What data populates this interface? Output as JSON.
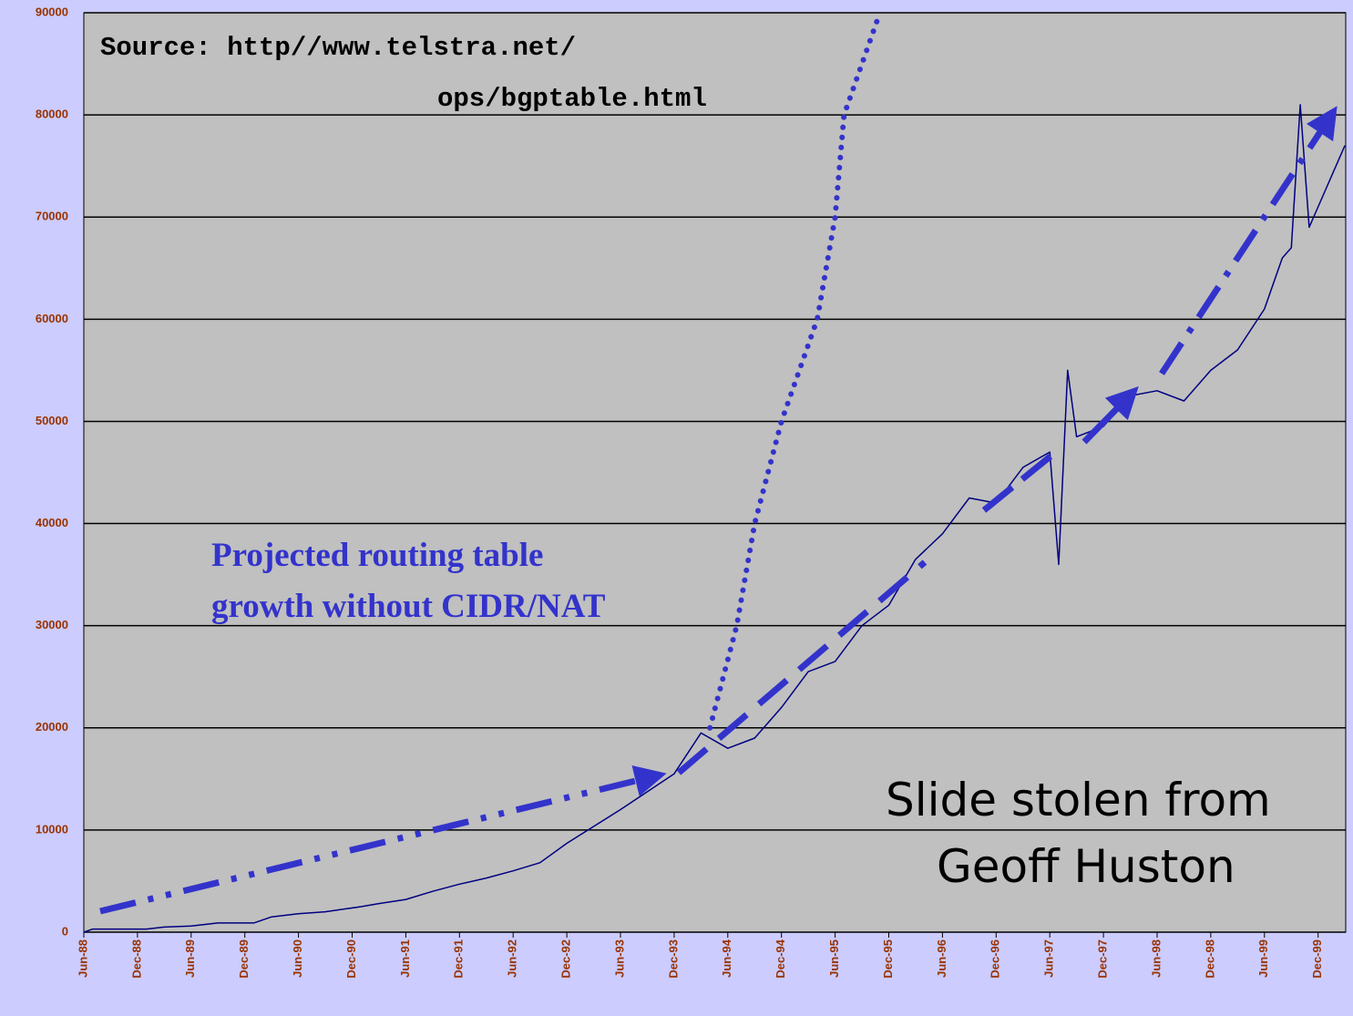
{
  "chart_data": {
    "type": "line",
    "categories": [
      "Jun-88",
      "Dec-88",
      "Jun-89",
      "Dec-89",
      "Jun-90",
      "Dec-90",
      "Jun-91",
      "Dec-91",
      "Jun-92",
      "Dec-92",
      "Jun-93",
      "Dec-93",
      "Jun-94",
      "Dec-94",
      "Jun-95",
      "Dec-95",
      "Jun-96",
      "Dec-96",
      "Jun-97",
      "Dec-97",
      "Jun-98",
      "Dec-98",
      "Jun-99",
      "Dec-99"
    ],
    "ylim": [
      0,
      90000
    ],
    "yticks": [
      0,
      10000,
      20000,
      30000,
      40000,
      50000,
      60000,
      70000,
      80000,
      90000
    ],
    "grid": true,
    "series": [
      {
        "color": "#000080",
        "style": "solid",
        "x": [
          "1988-06",
          "1988-07",
          "1989-01",
          "1989-03",
          "1989-06",
          "1989-09",
          "1990-01",
          "1990-03",
          "1990-06",
          "1990-09",
          "1991-01",
          "1991-03",
          "1991-06",
          "1991-09",
          "1991-12",
          "1992-03",
          "1992-06",
          "1992-09",
          "1992-12",
          "1993-06",
          "1993-12",
          "1994-03",
          "1994-06",
          "1994-09",
          "1994-12",
          "1995-03",
          "1995-06",
          "1995-09",
          "1995-12",
          "1996-03",
          "1996-06",
          "1996-09",
          "1996-12",
          "1997-03",
          "1997-06",
          "1997-07",
          "1997-08",
          "1997-09",
          "1997-12",
          "1998-03",
          "1998-06",
          "1998-09",
          "1998-12",
          "1999-03",
          "1999-06",
          "1999-08",
          "1999-09",
          "1999-10",
          "1999-11",
          "1999-12",
          "2000-03"
        ],
        "values": [
          0,
          300,
          300,
          500,
          600,
          900,
          900,
          1500,
          1800,
          2000,
          2500,
          2800,
          3200,
          4000,
          4700,
          5300,
          6000,
          6800,
          8700,
          12000,
          15500,
          19500,
          18000,
          19000,
          22000,
          25500,
          26500,
          30000,
          32000,
          36500,
          39000,
          42500,
          42000,
          45500,
          47000,
          36000,
          55000,
          48500,
          49500,
          52500,
          53000,
          52000,
          55000,
          57000,
          61000,
          66000,
          67000,
          81000,
          69000,
          71000,
          77000
        ]
      },
      {
        "color": "#3333cc",
        "style": "dotted",
        "x": [
          "1994-04",
          "1994-07",
          "1994-09",
          "1994-12",
          "1995-04",
          "1995-06",
          "1995-07",
          "1995-11"
        ],
        "values": [
          20000,
          30000,
          40000,
          50000,
          60000,
          70000,
          80000,
          90000
        ]
      }
    ],
    "annotations": [
      "Source: http//www.telstra.net/",
      "ops/bgptable.html",
      "Projected routing table",
      "growth without CIDR/NAT",
      "Slide stolen from",
      "Geoff Huston"
    ]
  }
}
